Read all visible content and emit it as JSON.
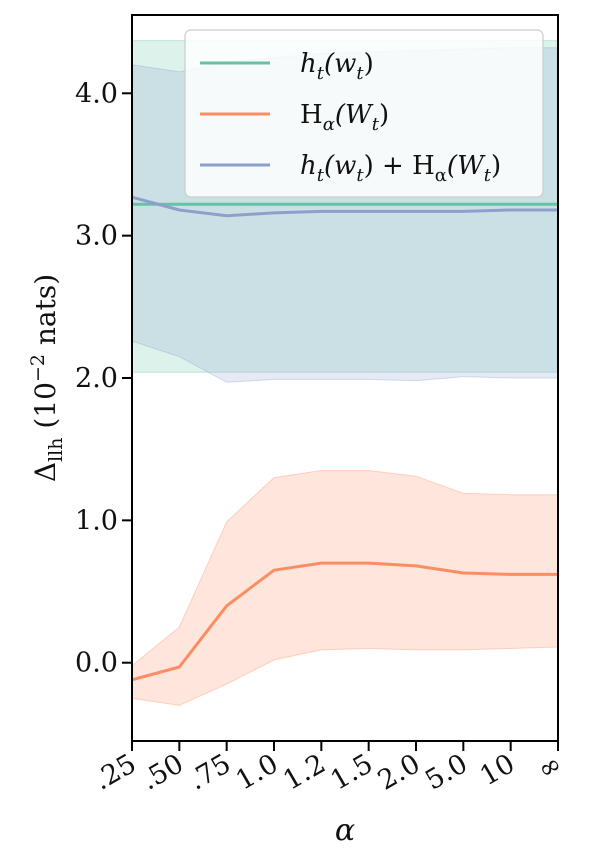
{
  "chart_data": {
    "type": "line",
    "xlabel": "α",
    "ylabel": "Δ_llh (10^−2 nats)",
    "ylabel_parts": {
      "delta": "Δ",
      "sub": "llh",
      "paren_open": " (10",
      "exp": "−2",
      "unit": " nats)"
    },
    "categories": [
      ".25",
      ".50",
      ".75",
      "1.0",
      "1.2",
      "1.5",
      "2.0",
      "5.0",
      "10",
      "∞"
    ],
    "ylim": [
      -0.55,
      4.55
    ],
    "yticks": [
      0.0,
      1.0,
      2.0,
      3.0,
      4.0
    ],
    "ytick_labels": [
      "0.0",
      "1.0",
      "2.0",
      "3.0",
      "4.0"
    ],
    "grid": false,
    "legend_placement": "top-right",
    "series": [
      {
        "name": "h_t(w_t)",
        "legend_parts": {
          "a": "h",
          "a_sub": "t",
          "b": "(w",
          "b_sub": "t",
          "c": ")"
        },
        "color": "#66c2a5",
        "values": [
          3.22,
          3.22,
          3.22,
          3.22,
          3.22,
          3.22,
          3.22,
          3.22,
          3.22,
          3.22
        ],
        "lower": [
          2.04,
          2.04,
          2.04,
          2.04,
          2.04,
          2.04,
          2.04,
          2.04,
          2.04,
          2.04
        ],
        "upper": [
          4.37,
          4.37,
          4.37,
          4.37,
          4.37,
          4.37,
          4.37,
          4.37,
          4.37,
          4.37
        ]
      },
      {
        "name": "H_α(W_t)",
        "legend_parts": {
          "a": "H",
          "a_sub": "α",
          "b": "(W",
          "b_sub": "t",
          "c": ")"
        },
        "color": "#fc8d62",
        "values": [
          -0.12,
          -0.03,
          0.4,
          0.65,
          0.7,
          0.7,
          0.68,
          0.63,
          0.62,
          0.62
        ],
        "lower": [
          -0.25,
          -0.3,
          -0.15,
          0.02,
          0.09,
          0.1,
          0.09,
          0.09,
          0.1,
          0.11
        ],
        "upper": [
          -0.02,
          0.25,
          0.99,
          1.3,
          1.35,
          1.35,
          1.31,
          1.19,
          1.18,
          1.18
        ]
      },
      {
        "name": "h_t(w_t) + H_α(W_t)",
        "legend_parts": {
          "a": "h",
          "a_sub": "t",
          "b": "(w",
          "b_sub": "t",
          "c": ") + H",
          "c_sub": "α",
          "d": "(W",
          "d_sub": "t",
          "e": ")"
        },
        "color": "#8da0cb",
        "values": [
          3.27,
          3.18,
          3.14,
          3.16,
          3.17,
          3.17,
          3.17,
          3.17,
          3.18,
          3.18
        ],
        "lower": [
          2.26,
          2.15,
          1.97,
          1.99,
          1.99,
          1.99,
          1.98,
          2.01,
          2.0,
          2.0
        ],
        "upper": [
          4.2,
          4.15,
          4.22,
          4.25,
          4.28,
          4.29,
          4.3,
          4.31,
          4.32,
          4.32
        ]
      }
    ]
  }
}
